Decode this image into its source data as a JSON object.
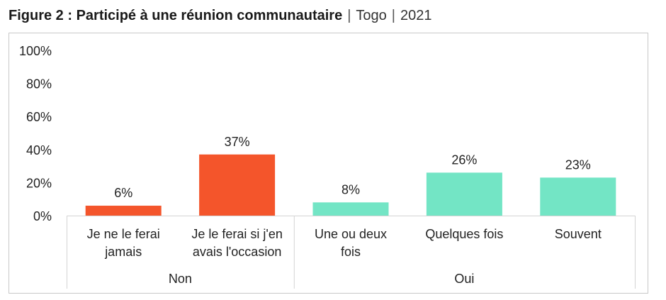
{
  "title": {
    "main": "Figure 2 : Participé à une réunion communautaire",
    "separator": "|",
    "country": "Togo",
    "year": "2021"
  },
  "chart_data": {
    "type": "bar",
    "title": "Figure 2 : Participé à une réunion communautaire | Togo | 2021",
    "ylim": [
      0,
      100
    ],
    "yticks": [
      "0%",
      "20%",
      "40%",
      "60%",
      "80%",
      "100%"
    ],
    "ytick_values": [
      0,
      20,
      40,
      60,
      80,
      100
    ],
    "grid": false,
    "legend": "none",
    "categories": [
      [
        "Je ne le ferai",
        "jamais"
      ],
      [
        "Je le ferai si j'en",
        "avais l'occasion"
      ],
      [
        "Une ou deux",
        "fois"
      ],
      [
        "Quelques fois"
      ],
      [
        "Souvent"
      ]
    ],
    "groups": [
      {
        "label": "Non",
        "span": 2
      },
      {
        "label": "Oui",
        "span": 3
      }
    ],
    "values": [
      6,
      37,
      8,
      26,
      23
    ],
    "data_labels": [
      "6%",
      "37%",
      "8%",
      "26%",
      "23%"
    ],
    "colors": [
      "#f4552b",
      "#f4552b",
      "#73e5c5",
      "#73e5c5",
      "#73e5c5"
    ]
  }
}
